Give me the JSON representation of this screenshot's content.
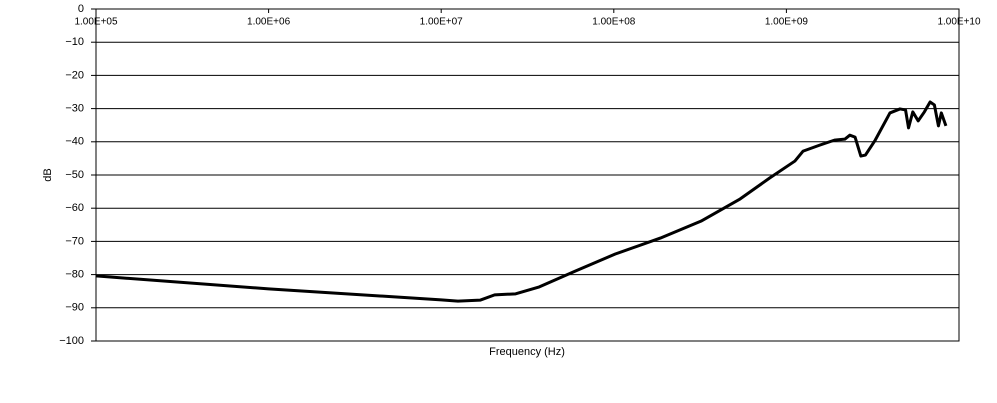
{
  "chart_data": {
    "type": "line",
    "xlabel": "Frequency (Hz)",
    "ylabel": "dB",
    "xscale": "log",
    "xlim": [
      100000,
      10000000000
    ],
    "xticks": [
      {
        "value": 100000,
        "label": "1.00E+05"
      },
      {
        "value": 1000000,
        "label": "1.00E+06"
      },
      {
        "value": 10000000,
        "label": "1.00E+07"
      },
      {
        "value": 100000000,
        "label": "1.00E+08"
      },
      {
        "value": 1000000000,
        "label": "1.00E+09"
      },
      {
        "value": 10000000000,
        "label": "1.00E+10"
      }
    ],
    "ylim": [
      -100,
      0
    ],
    "yticks": [
      0,
      {
        "value": -10,
        "label": "−10"
      },
      {
        "value": -20,
        "label": "−20"
      },
      {
        "value": -30,
        "label": "−30"
      },
      {
        "value": -40,
        "label": "−40"
      },
      {
        "value": -50,
        "label": "−50"
      },
      {
        "value": -60,
        "label": "−60"
      },
      {
        "value": -70,
        "label": "−70"
      },
      {
        "value": -80,
        "label": "−80"
      },
      {
        "value": -90,
        "label": "−90"
      },
      {
        "value": -100,
        "label": "−100"
      }
    ],
    "grid": true,
    "series": [
      {
        "color": "#000000",
        "x": [
          100000,
          1000000,
          10000000,
          12500000,
          16800000,
          20400000,
          27000000,
          37000000,
          60000000,
          102000000,
          186000000,
          320000000,
          540000000,
          800000000,
          1120000000,
          1250000000,
          1560000000,
          1900000000,
          2180000000,
          2330000000,
          2500000000,
          2700000000,
          2870000000,
          3270000000,
          3980000000,
          4550000000,
          4900000000,
          5100000000,
          5400000000,
          5800000000,
          6300000000,
          6800000000,
          7200000000,
          7600000000,
          7900000000,
          8400000000
        ],
        "values": [
          -80.4,
          -84.3,
          -87.6,
          -88,
          -87.7,
          -86.1,
          -85.8,
          -83.7,
          -78.9,
          -73.8,
          -69,
          -63.9,
          -57.2,
          -50.9,
          -45.8,
          -42.8,
          -41,
          -39.5,
          -39.2,
          -38,
          -38.6,
          -44.3,
          -44,
          -39.5,
          -31.3,
          -30.1,
          -30.4,
          -35.8,
          -31,
          -33.7,
          -31,
          -28,
          -28.9,
          -35.2,
          -31.3,
          -35.2
        ]
      }
    ]
  }
}
